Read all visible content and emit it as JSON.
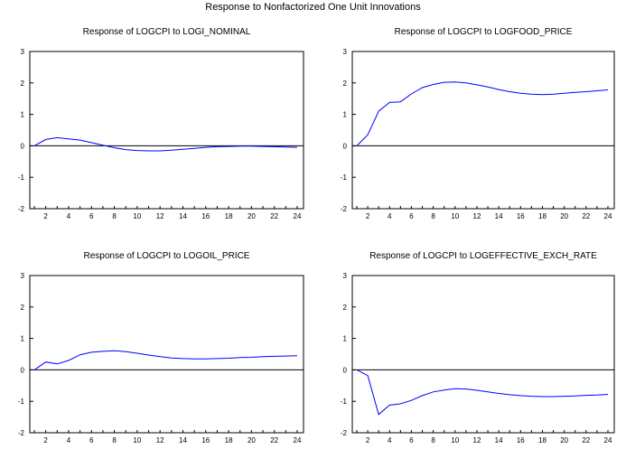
{
  "title": "Response to Nonfactorized One Unit Innovations",
  "chart_data": [
    {
      "type": "line",
      "title": "Response of LOGCPI to LOGI_NOMINAL",
      "x": [
        1,
        2,
        3,
        4,
        5,
        6,
        7,
        8,
        9,
        10,
        11,
        12,
        13,
        14,
        15,
        16,
        17,
        18,
        19,
        20,
        21,
        22,
        23,
        24
      ],
      "values": [
        0.0,
        0.2,
        0.26,
        0.22,
        0.18,
        0.1,
        0.02,
        -0.06,
        -0.12,
        -0.15,
        -0.16,
        -0.16,
        -0.14,
        -0.11,
        -0.08,
        -0.05,
        -0.03,
        -0.02,
        -0.01,
        -0.01,
        -0.02,
        -0.03,
        -0.04,
        -0.05
      ],
      "xticks": [
        "2",
        "4",
        "6",
        "8",
        "10",
        "12",
        "14",
        "16",
        "18",
        "20",
        "22",
        "24"
      ],
      "yticks": [
        "-2",
        "-1",
        "0",
        "1",
        "2",
        "3"
      ],
      "ylim": [
        -2,
        3
      ],
      "xlim": [
        1,
        24
      ],
      "line_color": "#0000ff"
    },
    {
      "type": "line",
      "title": "Response of LOGCPI to LOGFOOD_PRICE",
      "x": [
        1,
        2,
        3,
        4,
        5,
        6,
        7,
        8,
        9,
        10,
        11,
        12,
        13,
        14,
        15,
        16,
        17,
        18,
        19,
        20,
        21,
        22,
        23,
        24
      ],
      "values": [
        0.0,
        0.35,
        1.1,
        1.38,
        1.4,
        1.65,
        1.85,
        1.95,
        2.02,
        2.03,
        2.0,
        1.94,
        1.87,
        1.79,
        1.72,
        1.67,
        1.64,
        1.63,
        1.64,
        1.67,
        1.7,
        1.72,
        1.75,
        1.78
      ],
      "xticks": [
        "2",
        "4",
        "6",
        "8",
        "10",
        "12",
        "14",
        "16",
        "18",
        "20",
        "22",
        "24"
      ],
      "yticks": [
        "-2",
        "-1",
        "0",
        "1",
        "2",
        "3"
      ],
      "ylim": [
        -2,
        3
      ],
      "xlim": [
        1,
        24
      ],
      "line_color": "#0000ff"
    },
    {
      "type": "line",
      "title": "Response of LOGCPI to LOGOIL_PRICE",
      "x": [
        1,
        2,
        3,
        4,
        5,
        6,
        7,
        8,
        9,
        10,
        11,
        12,
        13,
        14,
        15,
        16,
        17,
        18,
        19,
        20,
        21,
        22,
        23,
        24
      ],
      "values": [
        0.0,
        0.25,
        0.19,
        0.3,
        0.48,
        0.56,
        0.59,
        0.61,
        0.58,
        0.53,
        0.47,
        0.42,
        0.38,
        0.36,
        0.35,
        0.35,
        0.36,
        0.37,
        0.39,
        0.4,
        0.42,
        0.43,
        0.44,
        0.45
      ],
      "xticks": [
        "2",
        "4",
        "6",
        "8",
        "10",
        "12",
        "14",
        "16",
        "18",
        "20",
        "22",
        "24"
      ],
      "yticks": [
        "-2",
        "-1",
        "0",
        "1",
        "2",
        "3"
      ],
      "ylim": [
        -2,
        3
      ],
      "xlim": [
        1,
        24
      ],
      "line_color": "#0000ff"
    },
    {
      "type": "line",
      "title": "Response of LOGCPI to LOGEFFECTIVE_EXCH_RATE",
      "x": [
        1,
        2,
        3,
        4,
        5,
        6,
        7,
        8,
        9,
        10,
        11,
        12,
        13,
        14,
        15,
        16,
        17,
        18,
        19,
        20,
        21,
        22,
        23,
        24
      ],
      "values": [
        0.0,
        -0.18,
        -1.42,
        -1.12,
        -1.08,
        -0.97,
        -0.82,
        -0.7,
        -0.64,
        -0.6,
        -0.61,
        -0.65,
        -0.7,
        -0.75,
        -0.79,
        -0.82,
        -0.84,
        -0.85,
        -0.85,
        -0.84,
        -0.83,
        -0.81,
        -0.8,
        -0.78
      ],
      "xticks": [
        "2",
        "4",
        "6",
        "8",
        "10",
        "12",
        "14",
        "16",
        "18",
        "20",
        "22",
        "24"
      ],
      "yticks": [
        "-2",
        "-1",
        "0",
        "1",
        "2",
        "3"
      ],
      "ylim": [
        -2,
        3
      ],
      "xlim": [
        1,
        24
      ],
      "line_color": "#0000ff"
    }
  ]
}
